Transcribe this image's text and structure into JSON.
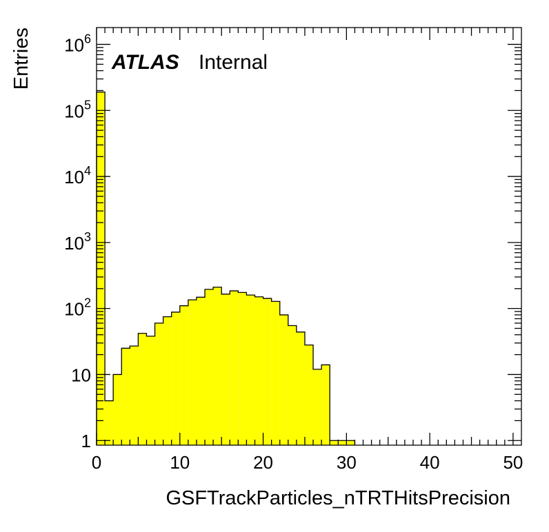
{
  "chart_data": {
    "type": "bar",
    "histogram": true,
    "xlabel": "GSFTrackParticles_nTRTHitsPrecision",
    "ylabel": "Entries",
    "xlim": [
      0,
      51
    ],
    "ylim": [
      0.85,
      1800000
    ],
    "yscale": "log",
    "bin_width": 1,
    "x_ticks": [
      {
        "value": 0,
        "label": "0"
      },
      {
        "value": 10,
        "label": "10"
      },
      {
        "value": 20,
        "label": "20"
      },
      {
        "value": 30,
        "label": "30"
      },
      {
        "value": 40,
        "label": "40"
      },
      {
        "value": 50,
        "label": "50"
      }
    ],
    "y_ticks": [
      {
        "value": 1,
        "base": "1",
        "exp": ""
      },
      {
        "value": 10,
        "base": "10",
        "exp": ""
      },
      {
        "value": 100,
        "base": "10",
        "exp": "2"
      },
      {
        "value": 1000,
        "base": "10",
        "exp": "3"
      },
      {
        "value": 10000,
        "base": "10",
        "exp": "4"
      },
      {
        "value": 100000,
        "base": "10",
        "exp": "5"
      },
      {
        "value": 1000000,
        "base": "10",
        "exp": "6"
      }
    ],
    "bins_low_edge": [
      0,
      1,
      2,
      3,
      4,
      5,
      6,
      7,
      8,
      9,
      10,
      11,
      12,
      13,
      14,
      15,
      16,
      17,
      18,
      19,
      20,
      21,
      22,
      23,
      24,
      25,
      26,
      27,
      28,
      29,
      30
    ],
    "values": [
      190000,
      4,
      10,
      25,
      27,
      42,
      38,
      60,
      75,
      88,
      110,
      135,
      148,
      195,
      210,
      165,
      185,
      175,
      160,
      150,
      142,
      128,
      80,
      55,
      44,
      28,
      12,
      14,
      1,
      1,
      1
    ],
    "fill_color": "#ffff00",
    "line_color": "#000000",
    "grid": false
  },
  "labels": {
    "experiment": "ATLAS",
    "status": "Internal"
  }
}
